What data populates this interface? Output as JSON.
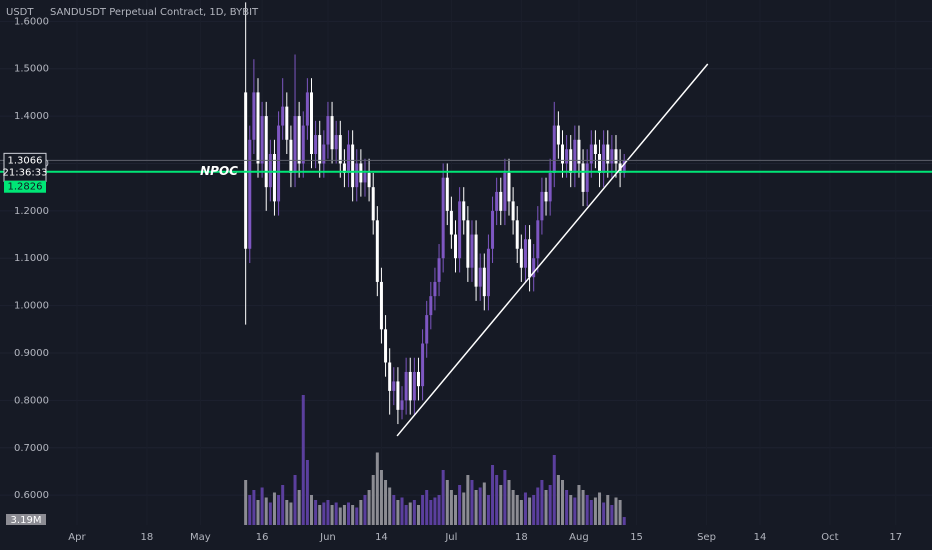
{
  "chart_data": {
    "type": "candlestick",
    "title": "SANDUSDT Perpetual Contract, 1D, BYBIT",
    "y_label": "USDT",
    "up_color": "#7e57c2",
    "down_color": "#ffffff",
    "x": [
      132,
      133,
      134,
      135,
      136,
      137,
      138,
      139,
      140,
      141,
      142,
      143,
      144,
      145,
      146,
      147,
      148,
      149,
      150,
      151,
      152,
      153,
      154,
      155,
      156,
      157,
      158,
      159,
      160,
      161,
      162,
      163,
      164,
      165,
      166,
      167,
      168,
      169,
      170,
      171,
      172,
      173,
      174,
      175,
      176,
      177,
      178,
      179,
      180,
      181,
      182,
      183,
      184,
      185,
      186,
      187,
      188,
      189,
      190,
      191,
      192,
      193,
      194,
      195,
      196,
      197,
      198,
      199,
      200,
      201,
      202,
      203,
      204,
      205,
      206,
      207,
      208,
      209,
      210,
      211,
      212,
      213,
      214,
      215,
      216,
      217,
      218,
      219,
      220,
      221,
      222,
      223,
      224
    ],
    "open": [
      1.45,
      1.12,
      1.35,
      1.45,
      1.3,
      1.4,
      1.25,
      1.32,
      1.22,
      1.38,
      1.42,
      1.35,
      1.28,
      1.4,
      1.3,
      1.38,
      1.45,
      1.32,
      1.36,
      1.3,
      1.34,
      1.4,
      1.33,
      1.36,
      1.3,
      1.28,
      1.34,
      1.25,
      1.3,
      1.26,
      1.28,
      1.25,
      1.18,
      1.05,
      0.95,
      0.88,
      0.82,
      0.84,
      0.78,
      0.8,
      0.86,
      0.8,
      0.86,
      0.83,
      0.92,
      0.98,
      1.02,
      1.05,
      1.1,
      1.27,
      1.2,
      1.15,
      1.1,
      1.22,
      1.18,
      1.08,
      1.15,
      1.04,
      1.08,
      1.02,
      1.12,
      1.2,
      1.24,
      1.2,
      1.28,
      1.22,
      1.18,
      1.12,
      1.08,
      1.14,
      1.06,
      1.1,
      1.18,
      1.24,
      1.22,
      1.28,
      1.38,
      1.34,
      1.3,
      1.33,
      1.28,
      1.35,
      1.3,
      1.24,
      1.3,
      1.34,
      1.32,
      1.28,
      1.34,
      1.3,
      1.33,
      1.3,
      1.28
    ],
    "high": [
      1.64,
      1.38,
      1.52,
      1.48,
      1.43,
      1.43,
      1.35,
      1.35,
      1.41,
      1.48,
      1.45,
      1.38,
      1.53,
      1.43,
      1.41,
      1.48,
      1.48,
      1.39,
      1.39,
      1.37,
      1.43,
      1.43,
      1.39,
      1.39,
      1.33,
      1.37,
      1.37,
      1.33,
      1.33,
      1.31,
      1.31,
      1.28,
      1.21,
      1.08,
      0.98,
      0.91,
      0.87,
      0.87,
      0.83,
      0.89,
      0.89,
      0.89,
      0.89,
      0.95,
      1.01,
      1.05,
      1.08,
      1.13,
      1.3,
      1.3,
      1.23,
      1.18,
      1.25,
      1.25,
      1.21,
      1.18,
      1.18,
      1.11,
      1.11,
      1.15,
      1.23,
      1.27,
      1.27,
      1.31,
      1.31,
      1.25,
      1.21,
      1.15,
      1.17,
      1.17,
      1.13,
      1.21,
      1.27,
      1.27,
      1.31,
      1.43,
      1.41,
      1.37,
      1.36,
      1.36,
      1.38,
      1.38,
      1.33,
      1.33,
      1.37,
      1.37,
      1.35,
      1.37,
      1.37,
      1.36,
      1.36,
      1.33,
      1.32
    ],
    "low": [
      0.96,
      1.09,
      1.32,
      1.27,
      1.27,
      1.2,
      1.22,
      1.19,
      1.19,
      1.35,
      1.32,
      1.25,
      1.25,
      1.27,
      1.27,
      1.35,
      1.29,
      1.29,
      1.27,
      1.27,
      1.31,
      1.3,
      1.3,
      1.27,
      1.25,
      1.25,
      1.22,
      1.22,
      1.23,
      1.23,
      1.22,
      1.15,
      1.02,
      0.92,
      0.85,
      0.77,
      0.79,
      0.75,
      0.76,
      0.77,
      0.77,
      0.77,
      0.8,
      0.8,
      0.89,
      0.95,
      0.99,
      1.02,
      1.07,
      1.17,
      1.12,
      1.07,
      1.07,
      1.15,
      1.05,
      1.05,
      1.01,
      1.01,
      0.99,
      0.99,
      1.09,
      1.17,
      1.17,
      1.17,
      1.19,
      1.15,
      1.09,
      1.05,
      1.05,
      1.03,
      1.03,
      1.07,
      1.15,
      1.19,
      1.19,
      1.25,
      1.31,
      1.27,
      1.27,
      1.25,
      1.25,
      1.27,
      1.21,
      1.21,
      1.27,
      1.29,
      1.25,
      1.25,
      1.27,
      1.27,
      1.27,
      1.25,
      1.27
    ],
    "close": [
      1.12,
      1.35,
      1.45,
      1.3,
      1.4,
      1.25,
      1.32,
      1.22,
      1.38,
      1.42,
      1.35,
      1.28,
      1.4,
      1.3,
      1.38,
      1.45,
      1.32,
      1.36,
      1.3,
      1.34,
      1.4,
      1.33,
      1.36,
      1.3,
      1.28,
      1.34,
      1.25,
      1.3,
      1.26,
      1.28,
      1.25,
      1.18,
      1.05,
      0.95,
      0.88,
      0.82,
      0.84,
      0.78,
      0.8,
      0.86,
      0.8,
      0.86,
      0.83,
      0.92,
      0.98,
      1.02,
      1.05,
      1.1,
      1.27,
      1.2,
      1.15,
      1.1,
      1.22,
      1.18,
      1.08,
      1.15,
      1.04,
      1.08,
      1.02,
      1.12,
      1.2,
      1.24,
      1.2,
      1.28,
      1.22,
      1.18,
      1.12,
      1.08,
      1.14,
      1.06,
      1.1,
      1.18,
      1.24,
      1.22,
      1.28,
      1.38,
      1.34,
      1.3,
      1.33,
      1.28,
      1.35,
      1.3,
      1.24,
      1.3,
      1.34,
      1.32,
      1.28,
      1.34,
      1.3,
      1.33,
      1.3,
      1.28,
      1.3066
    ],
    "volume": {
      "up_color": "#5b3f9e",
      "down_color": "#8c8c93",
      "lim": [
        0,
        130
      ],
      "values": [
        18,
        12,
        14,
        10,
        15,
        11,
        9,
        13,
        12,
        16,
        10,
        9,
        20,
        14,
        52,
        26,
        12,
        10,
        8,
        9,
        10,
        8,
        9,
        7,
        8,
        9,
        8,
        7,
        10,
        12,
        14,
        20,
        29,
        22,
        18,
        15,
        12,
        10,
        11,
        8,
        9,
        10,
        8,
        12,
        14,
        10,
        11,
        12,
        22,
        18,
        14,
        12,
        16,
        13,
        20,
        18,
        14,
        15,
        17,
        12,
        24,
        20,
        16,
        22,
        18,
        14,
        12,
        10,
        13,
        11,
        12,
        15,
        18,
        14,
        16,
        28,
        20,
        18,
        14,
        12,
        11,
        16,
        14,
        12,
        10,
        11,
        13,
        9,
        12,
        8,
        11,
        10,
        3.19
      ],
      "value_labels": [
        null,
        null,
        null,
        null,
        null,
        null,
        null,
        null,
        null,
        null,
        null,
        null,
        null,
        null,
        null,
        null,
        null,
        null,
        null,
        null,
        null,
        null,
        null,
        null,
        null,
        null,
        null,
        null,
        null,
        null,
        null,
        null,
        null,
        null,
        null,
        null,
        null,
        null,
        null,
        null,
        null,
        null,
        null,
        null,
        null,
        null,
        null,
        null,
        null,
        null,
        null,
        null,
        null,
        null,
        null,
        null,
        null,
        null,
        null,
        null,
        null,
        null,
        null,
        null,
        null,
        null,
        null,
        null,
        null,
        null,
        null,
        null,
        null,
        null,
        null,
        null,
        null,
        null,
        null,
        null,
        null,
        null,
        null,
        null,
        null,
        null,
        null,
        null,
        null,
        null,
        null,
        null,
        "3.19M"
      ]
    },
    "countdown": "21:36:33",
    "npoc": {
      "label": "NPOC",
      "value": 1.2826,
      "color": "#00e676"
    },
    "trendline": {
      "x": [
        168.8,
        244.3
      ],
      "y": [
        0.725,
        1.51
      ],
      "color": "#ffffff"
    },
    "xlim": [
      72.3,
      298.8
    ],
    "xticks": [
      {
        "value": 91,
        "label": "Apr"
      },
      {
        "value": 108,
        "label": "18"
      },
      {
        "value": 121,
        "label": "May"
      },
      {
        "value": 136,
        "label": "16"
      },
      {
        "value": 152,
        "label": "Jun"
      },
      {
        "value": 165,
        "label": "14"
      },
      {
        "value": 182,
        "label": "Jul"
      },
      {
        "value": 199,
        "label": "18"
      },
      {
        "value": 213,
        "label": "Aug"
      },
      {
        "value": 227,
        "label": "15"
      },
      {
        "value": 244,
        "label": "Sep"
      },
      {
        "value": 257,
        "label": "14"
      },
      {
        "value": 274,
        "label": "Oct"
      },
      {
        "value": 290,
        "label": "17"
      }
    ],
    "ylim": [
      0.537,
      1.645
    ],
    "yticks": [
      {
        "value": 0.6,
        "label": "0.6000"
      },
      {
        "value": 0.7,
        "label": "0.7000"
      },
      {
        "value": 0.8,
        "label": "0.8000"
      },
      {
        "value": 0.9,
        "label": "0.9000"
      },
      {
        "value": 1.0,
        "label": "1.0000"
      },
      {
        "value": 1.1,
        "label": "1.1000"
      },
      {
        "value": 1.2,
        "label": "1.2000"
      },
      {
        "value": 1.3,
        "label": "1.3000"
      },
      {
        "value": 1.4,
        "label": "1.4000"
      },
      {
        "value": 1.5,
        "label": "1.5000"
      },
      {
        "value": 1.6,
        "label": "1.6000"
      }
    ]
  }
}
